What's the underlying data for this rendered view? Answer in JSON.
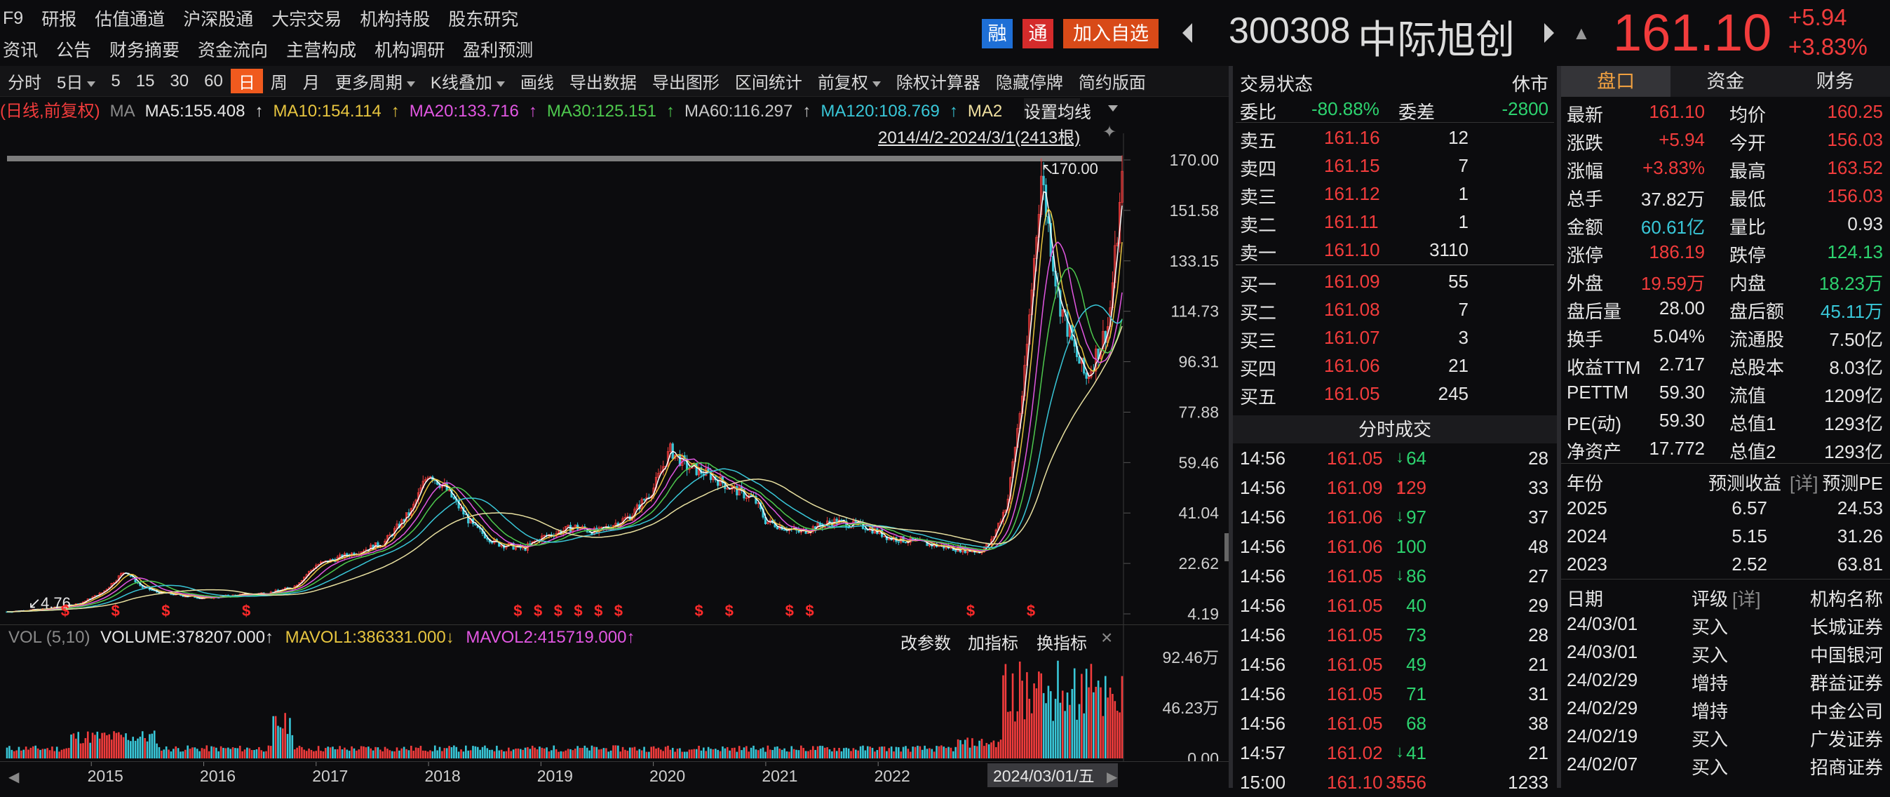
{
  "nav": {
    "row1": [
      "F9",
      "研报",
      "估值通道",
      "沪深股通",
      "大宗交易",
      "机构持股",
      "股东研究"
    ],
    "row2": [
      "资讯",
      "公告",
      "财务摘要",
      "资金流向",
      "主营构成",
      "机构调研",
      "盈利预测"
    ]
  },
  "header": {
    "rong": "融",
    "tong": "通",
    "add_watch": "加入自选",
    "code": "300308",
    "name": "中际旭创",
    "price": "161.10",
    "change": "+5.94",
    "change_pct": "+3.83%"
  },
  "toolbar": {
    "items": [
      "分时",
      "5日",
      "5",
      "15",
      "30",
      "60",
      "日",
      "周",
      "月",
      "更多周期",
      "K线叠加",
      "画线",
      "导出数据",
      "导出图形",
      "区间统计",
      "前复权",
      "除权计算器",
      "隐藏停牌",
      "简约版面"
    ],
    "active": "日",
    "dropdowns": [
      "5日",
      "更多周期",
      "K线叠加",
      "前复权"
    ]
  },
  "ma_line": {
    "mode": "(日线,前复权)",
    "ma": "MA",
    "ma5": "MA5:155.408",
    "ma10": "MA10:154.114",
    "ma20": "MA20:133.716",
    "ma30": "MA30:125.151",
    "ma60": "MA60:116.297",
    "ma120": "MA120:108.769",
    "ma2": "MA2"
  },
  "chart_info": {
    "range": "2014/4/2-2024/3/1(2413根)",
    "set_ma": "设置均线",
    "high_label": "170.00",
    "low_label": "4.76"
  },
  "vol_info": {
    "label": "VOL (5,10)",
    "volume": "VOLUME:378207.000",
    "mavol1": "MAVOL1:386331.000",
    "mavol2": "MAVOL2:415719.000",
    "btn_params": "改参数",
    "btn_add": "加指标",
    "btn_switch": "换指标"
  },
  "colors": {
    "up": "#f23c3c",
    "down": "#39c7d8",
    "ma5": "#ffffff",
    "ma10": "#e7c53f",
    "ma20": "#e257e2",
    "ma30": "#4ec94e",
    "ma120": "#39c7d8",
    "accent": "#f05a1e"
  },
  "chart_data": {
    "type": "line",
    "subtype": "candlestick",
    "xlabel": "",
    "ylabel": "",
    "y_ticks": [
      "170.00",
      "151.58",
      "133.15",
      "114.73",
      "96.31",
      "77.88",
      "59.46",
      "41.04",
      "22.62",
      "4.19"
    ],
    "ylim": [
      4.19,
      170.0
    ],
    "x_ticks": [
      "2015",
      "2016",
      "2017",
      "2018",
      "2019",
      "2020",
      "2021",
      "2022",
      "2024/03/01/五"
    ],
    "close_series": {
      "x": [
        2014.25,
        2014.6,
        2014.9,
        2015.1,
        2015.3,
        2015.45,
        2015.6,
        2015.8,
        2016.0,
        2016.3,
        2016.6,
        2016.8,
        2017.0,
        2017.3,
        2017.6,
        2017.85,
        2018.0,
        2018.15,
        2018.4,
        2018.6,
        2018.85,
        2019.0,
        2019.3,
        2019.5,
        2019.8,
        2020.0,
        2020.15,
        2020.3,
        2020.5,
        2020.7,
        2020.9,
        2021.0,
        2021.3,
        2021.6,
        2021.9,
        2022.1,
        2022.4,
        2022.7,
        2022.9,
        2023.0,
        2023.15,
        2023.3,
        2023.4,
        2023.45,
        2023.5,
        2023.6,
        2023.75,
        2023.85,
        2023.95,
        2024.05,
        2024.17
      ],
      "y": [
        5,
        6,
        8,
        12,
        20,
        14,
        12,
        11,
        10,
        11,
        12,
        14,
        22,
        26,
        30,
        42,
        56,
        50,
        36,
        30,
        28,
        32,
        36,
        34,
        40,
        50,
        64,
        58,
        55,
        50,
        46,
        38,
        34,
        38,
        36,
        32,
        30,
        28,
        27,
        30,
        45,
        90,
        140,
        165,
        150,
        120,
        100,
        90,
        100,
        110,
        161.1
      ]
    },
    "volume": {
      "y_ticks": [
        "92.46万",
        "46.23万",
        "0.00"
      ],
      "ylim": [
        0,
        924600
      ]
    }
  },
  "order_book": {
    "title": "交易状态",
    "status": "休市",
    "wei_bi_label": "委比",
    "wei_bi": "-80.88%",
    "wei_cha_label": "委差",
    "wei_cha": "-2800",
    "sells": [
      {
        "label": "卖五",
        "price": "161.16",
        "vol": "12"
      },
      {
        "label": "卖四",
        "price": "161.15",
        "vol": "7"
      },
      {
        "label": "卖三",
        "price": "161.12",
        "vol": "1"
      },
      {
        "label": "卖二",
        "price": "161.11",
        "vol": "1"
      },
      {
        "label": "卖一",
        "price": "161.10",
        "vol": "3110"
      }
    ],
    "buys": [
      {
        "label": "买一",
        "price": "161.09",
        "vol": "55"
      },
      {
        "label": "买二",
        "price": "161.08",
        "vol": "7"
      },
      {
        "label": "买三",
        "price": "161.07",
        "vol": "3"
      },
      {
        "label": "买四",
        "price": "161.06",
        "vol": "21"
      },
      {
        "label": "买五",
        "price": "161.05",
        "vol": "245"
      }
    ]
  },
  "ticks": {
    "title": "分时成交",
    "rows": [
      {
        "time": "14:56",
        "price": "161.05",
        "dir": "down",
        "vol": "64",
        "cnt": "28"
      },
      {
        "time": "14:56",
        "price": "161.09",
        "dir": "up",
        "vol": "129",
        "cnt": "33"
      },
      {
        "time": "14:56",
        "price": "161.06",
        "dir": "down",
        "vol": "97",
        "cnt": "37"
      },
      {
        "time": "14:56",
        "price": "161.06",
        "dir": "none",
        "vol": "100",
        "cnt": "48"
      },
      {
        "time": "14:56",
        "price": "161.05",
        "dir": "down",
        "vol": "86",
        "cnt": "27"
      },
      {
        "time": "14:56",
        "price": "161.05",
        "dir": "none",
        "vol": "40",
        "cnt": "29"
      },
      {
        "time": "14:56",
        "price": "161.05",
        "dir": "none",
        "vol": "73",
        "cnt": "28"
      },
      {
        "time": "14:56",
        "price": "161.05",
        "dir": "none",
        "vol": "49",
        "cnt": "21"
      },
      {
        "time": "14:56",
        "price": "161.05",
        "dir": "none",
        "vol": "71",
        "cnt": "31"
      },
      {
        "time": "14:56",
        "price": "161.05",
        "dir": "none",
        "vol": "68",
        "cnt": "38"
      },
      {
        "time": "14:57",
        "price": "161.02",
        "dir": "down",
        "vol": "41",
        "cnt": "21"
      },
      {
        "time": "15:00",
        "price": "161.10",
        "dir": "up",
        "vol": "3556",
        "cnt": "1233"
      }
    ]
  },
  "quote": {
    "tabs": [
      "盘口",
      "资金",
      "财务"
    ],
    "rows": [
      {
        "l1": "最新",
        "v1": "161.10",
        "c1": "red",
        "l2": "均价",
        "v2": "160.25",
        "c2": "red"
      },
      {
        "l1": "涨跌",
        "v1": "+5.94",
        "c1": "red",
        "l2": "今开",
        "v2": "156.03",
        "c2": "red"
      },
      {
        "l1": "涨幅",
        "v1": "+3.83%",
        "c1": "red",
        "l2": "最高",
        "v2": "163.52",
        "c2": "red"
      },
      {
        "l1": "总手",
        "v1": "37.82万",
        "c1": "white",
        "l2": "最低",
        "v2": "156.03",
        "c2": "red"
      },
      {
        "l1": "金额",
        "v1": "60.61亿",
        "c1": "cyan",
        "l2": "量比",
        "v2": "0.93",
        "c2": "white"
      },
      {
        "l1": "涨停",
        "v1": "186.19",
        "c1": "red",
        "l2": "跌停",
        "v2": "124.13",
        "c2": "green"
      },
      {
        "l1": "外盘",
        "v1": "19.59万",
        "c1": "red",
        "l2": "内盘",
        "v2": "18.23万",
        "c2": "green"
      },
      {
        "l1": "盘后量",
        "v1": "28.00",
        "c1": "white",
        "l2": "盘后额",
        "v2": "45.11万",
        "c2": "cyan"
      },
      {
        "l1": "换手",
        "v1": "5.04%",
        "c1": "white",
        "l2": "流通股",
        "v2": "7.50亿",
        "c2": "white"
      },
      {
        "l1": "收益TTM",
        "v1": "2.717",
        "c1": "white",
        "l2": "总股本",
        "v2": "8.03亿",
        "c2": "white"
      },
      {
        "l1": "PETTM",
        "v1": "59.30",
        "c1": "white",
        "l2": "流值",
        "v2": "1209亿",
        "c2": "white"
      },
      {
        "l1": "PE(动)",
        "v1": "59.30",
        "c1": "white",
        "l2": "总值1",
        "v2": "1293亿",
        "c2": "white"
      },
      {
        "l1": "净资产",
        "v1": "17.772",
        "c1": "white",
        "l2": "总值2",
        "v2": "1293亿",
        "c2": "white"
      }
    ],
    "forecast_header": {
      "year": "年份",
      "eps": "预测收益",
      "detail": "[详]",
      "pe": "预测PE"
    },
    "forecast": [
      {
        "year": "2025",
        "eps": "6.57",
        "pe": "24.53"
      },
      {
        "year": "2024",
        "eps": "5.15",
        "pe": "31.26"
      },
      {
        "year": "2023",
        "eps": "2.52",
        "pe": "63.81"
      }
    ],
    "rating_header": {
      "date": "日期",
      "rating": "评级",
      "detail": "[详]",
      "org": "机构名称"
    },
    "ratings": [
      {
        "date": "24/03/01",
        "rating": "买入",
        "org": "长城证券"
      },
      {
        "date": "24/03/01",
        "rating": "买入",
        "org": "中国银河"
      },
      {
        "date": "24/02/29",
        "rating": "增持",
        "org": "群益证券"
      },
      {
        "date": "24/02/29",
        "rating": "增持",
        "org": "中金公司"
      },
      {
        "date": "24/02/19",
        "rating": "买入",
        "org": "广发证券"
      },
      {
        "date": "24/02/07",
        "rating": "买入",
        "org": "招商证券"
      }
    ]
  }
}
